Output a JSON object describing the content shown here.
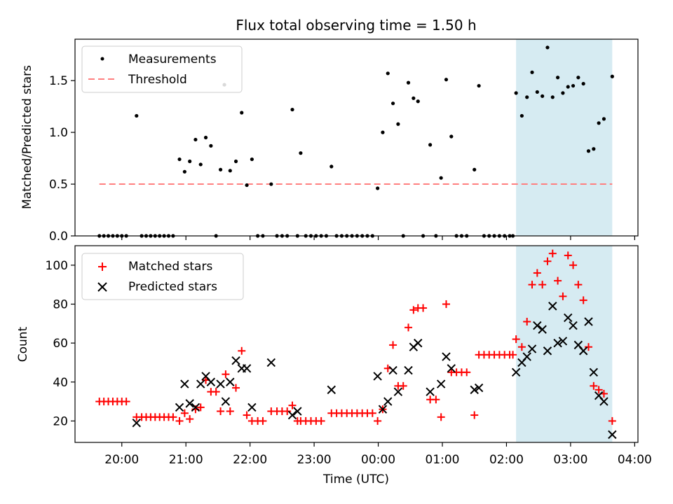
{
  "figure": {
    "title": "Flux total observing time = 1.50 h",
    "xlabel": "Time (UTC)",
    "xtick_labels": [
      "20:00",
      "21:00",
      "22:00",
      "23:00",
      "00:00",
      "01:00",
      "02:00",
      "03:00",
      "04:00"
    ],
    "colors": {
      "measurement": "#000000",
      "threshold": "#ff7f7f",
      "matched": "#ff0000",
      "predicted": "#000000",
      "span": "#add8e6"
    }
  },
  "chart_data": [
    {
      "type": "scatter",
      "x_unit": "hours since 19:00 UTC",
      "ylabel": "Matched/Predicted stars",
      "ylim": [
        0,
        1.9
      ],
      "yticks": [
        0.0,
        0.5,
        1.0,
        1.5
      ],
      "ytick_labels": [
        "0.0",
        "0.5",
        "1.0",
        "1.5"
      ],
      "legend": {
        "placement": "top-left",
        "entries": [
          "Measurements",
          "Threshold"
        ]
      },
      "threshold": {
        "name": "Threshold",
        "value": 0.5,
        "x": [
          0.65,
          8.65
        ]
      },
      "highlight_span": [
        7.15,
        8.65
      ],
      "series": [
        {
          "name": "Measurements",
          "points": [
            [
              0.65,
              0.0
            ],
            [
              0.72,
              0.0
            ],
            [
              0.79,
              0.0
            ],
            [
              0.86,
              0.0
            ],
            [
              0.93,
              0.0
            ],
            [
              1.0,
              0.0
            ],
            [
              1.07,
              0.0
            ],
            [
              1.23,
              1.16
            ],
            [
              1.31,
              0.0
            ],
            [
              1.38,
              0.0
            ],
            [
              1.45,
              0.0
            ],
            [
              1.52,
              0.0
            ],
            [
              1.59,
              0.0
            ],
            [
              1.66,
              0.0
            ],
            [
              1.73,
              0.0
            ],
            [
              1.8,
              0.0
            ],
            [
              1.9,
              0.74
            ],
            [
              1.98,
              0.62
            ],
            [
              2.06,
              0.72
            ],
            [
              2.15,
              0.93
            ],
            [
              2.23,
              0.69
            ],
            [
              2.31,
              0.95
            ],
            [
              2.39,
              0.87
            ],
            [
              2.47,
              0.0
            ],
            [
              2.54,
              0.64
            ],
            [
              2.6,
              1.46
            ],
            [
              2.69,
              0.63
            ],
            [
              2.78,
              0.72
            ],
            [
              2.87,
              1.19
            ],
            [
              2.95,
              0.49
            ],
            [
              3.03,
              0.74
            ],
            [
              3.12,
              0.0
            ],
            [
              3.2,
              0.0
            ],
            [
              3.33,
              0.5
            ],
            [
              3.42,
              0.0
            ],
            [
              3.5,
              0.0
            ],
            [
              3.58,
              0.0
            ],
            [
              3.66,
              1.22
            ],
            [
              3.74,
              0.0
            ],
            [
              3.79,
              0.8
            ],
            [
              3.87,
              0.0
            ],
            [
              3.95,
              0.0
            ],
            [
              4.03,
              0.0
            ],
            [
              4.11,
              0.0
            ],
            [
              4.19,
              0.0
            ],
            [
              4.27,
              0.67
            ],
            [
              4.35,
              0.0
            ],
            [
              4.43,
              0.0
            ],
            [
              4.51,
              0.0
            ],
            [
              4.59,
              0.0
            ],
            [
              4.67,
              0.0
            ],
            [
              4.75,
              0.0
            ],
            [
              4.83,
              0.0
            ],
            [
              4.91,
              0.0
            ],
            [
              4.99,
              0.46
            ],
            [
              5.07,
              1.0
            ],
            [
              5.15,
              1.57
            ],
            [
              5.23,
              1.28
            ],
            [
              5.31,
              1.08
            ],
            [
              5.39,
              0.0
            ],
            [
              5.47,
              1.48
            ],
            [
              5.55,
              1.33
            ],
            [
              5.62,
              1.3
            ],
            [
              5.7,
              0.0
            ],
            [
              5.81,
              0.88
            ],
            [
              5.9,
              0.0
            ],
            [
              5.98,
              0.56
            ],
            [
              6.06,
              1.51
            ],
            [
              6.14,
              0.96
            ],
            [
              6.22,
              0.0
            ],
            [
              6.3,
              0.0
            ],
            [
              6.38,
              0.0
            ],
            [
              6.5,
              0.64
            ],
            [
              6.57,
              1.45
            ],
            [
              6.65,
              0.0
            ],
            [
              6.73,
              0.0
            ],
            [
              6.81,
              0.0
            ],
            [
              6.89,
              0.0
            ],
            [
              6.97,
              0.0
            ],
            [
              7.05,
              0.0
            ],
            [
              7.1,
              0.0
            ],
            [
              7.15,
              1.38
            ],
            [
              7.24,
              1.16
            ],
            [
              7.32,
              1.34
            ],
            [
              7.4,
              1.58
            ],
            [
              7.48,
              1.39
            ],
            [
              7.56,
              1.35
            ],
            [
              7.64,
              1.82
            ],
            [
              7.72,
              1.34
            ],
            [
              7.8,
              1.53
            ],
            [
              7.88,
              1.38
            ],
            [
              7.96,
              1.44
            ],
            [
              8.04,
              1.45
            ],
            [
              8.12,
              1.53
            ],
            [
              8.2,
              1.47
            ],
            [
              8.28,
              0.82
            ],
            [
              8.36,
              0.84
            ],
            [
              8.44,
              1.09
            ],
            [
              8.52,
              1.13
            ],
            [
              8.65,
              1.54
            ]
          ]
        }
      ]
    },
    {
      "type": "scatter",
      "x_unit": "hours since 19:00 UTC",
      "ylabel": "Count",
      "ylim": [
        9,
        110
      ],
      "yticks": [
        20,
        40,
        60,
        80,
        100
      ],
      "ytick_labels": [
        "20",
        "40",
        "60",
        "80",
        "100"
      ],
      "legend": {
        "placement": "top-left",
        "entries": [
          "Matched stars",
          "Predicted stars"
        ]
      },
      "highlight_span": [
        7.15,
        8.65
      ],
      "series": [
        {
          "name": "Matched stars",
          "marker": "plus",
          "points": [
            [
              0.65,
              30
            ],
            [
              0.72,
              30
            ],
            [
              0.79,
              30
            ],
            [
              0.86,
              30
            ],
            [
              0.93,
              30
            ],
            [
              1.0,
              30
            ],
            [
              1.07,
              30
            ],
            [
              1.23,
              22
            ],
            [
              1.31,
              22
            ],
            [
              1.38,
              22
            ],
            [
              1.45,
              22
            ],
            [
              1.52,
              22
            ],
            [
              1.59,
              22
            ],
            [
              1.66,
              22
            ],
            [
              1.73,
              22
            ],
            [
              1.8,
              22
            ],
            [
              1.9,
              20
            ],
            [
              1.98,
              24
            ],
            [
              2.06,
              21
            ],
            [
              2.15,
              26
            ],
            [
              2.23,
              27
            ],
            [
              2.31,
              41
            ],
            [
              2.39,
              35
            ],
            [
              2.47,
              35
            ],
            [
              2.54,
              25
            ],
            [
              2.62,
              44
            ],
            [
              2.69,
              25
            ],
            [
              2.78,
              37
            ],
            [
              2.87,
              56
            ],
            [
              2.95,
              23
            ],
            [
              3.03,
              20
            ],
            [
              3.12,
              20
            ],
            [
              3.2,
              20
            ],
            [
              3.33,
              25
            ],
            [
              3.42,
              25
            ],
            [
              3.5,
              25
            ],
            [
              3.58,
              25
            ],
            [
              3.66,
              28
            ],
            [
              3.74,
              20
            ],
            [
              3.79,
              20
            ],
            [
              3.87,
              20
            ],
            [
              3.95,
              20
            ],
            [
              4.03,
              20
            ],
            [
              4.11,
              20
            ],
            [
              4.27,
              24
            ],
            [
              4.35,
              24
            ],
            [
              4.43,
              24
            ],
            [
              4.51,
              24
            ],
            [
              4.59,
              24
            ],
            [
              4.67,
              24
            ],
            [
              4.75,
              24
            ],
            [
              4.83,
              24
            ],
            [
              4.91,
              24
            ],
            [
              4.99,
              20
            ],
            [
              5.07,
              26
            ],
            [
              5.15,
              47
            ],
            [
              5.23,
              59
            ],
            [
              5.31,
              38
            ],
            [
              5.39,
              38
            ],
            [
              5.47,
              68
            ],
            [
              5.55,
              77
            ],
            [
              5.62,
              78
            ],
            [
              5.7,
              78
            ],
            [
              5.81,
              31
            ],
            [
              5.9,
              31
            ],
            [
              5.98,
              22
            ],
            [
              6.06,
              80
            ],
            [
              6.14,
              45
            ],
            [
              6.22,
              45
            ],
            [
              6.3,
              45
            ],
            [
              6.38,
              45
            ],
            [
              6.5,
              23
            ],
            [
              6.57,
              54
            ],
            [
              6.65,
              54
            ],
            [
              6.73,
              54
            ],
            [
              6.81,
              54
            ],
            [
              6.89,
              54
            ],
            [
              6.97,
              54
            ],
            [
              7.05,
              54
            ],
            [
              7.1,
              54
            ],
            [
              7.15,
              62
            ],
            [
              7.24,
              58
            ],
            [
              7.32,
              71
            ],
            [
              7.4,
              90
            ],
            [
              7.48,
              96
            ],
            [
              7.56,
              90
            ],
            [
              7.64,
              102
            ],
            [
              7.72,
              106
            ],
            [
              7.8,
              92
            ],
            [
              7.88,
              84
            ],
            [
              7.96,
              105
            ],
            [
              8.04,
              100
            ],
            [
              8.12,
              90
            ],
            [
              8.2,
              82
            ],
            [
              8.28,
              58
            ],
            [
              8.36,
              38
            ],
            [
              8.44,
              36
            ],
            [
              8.52,
              34
            ],
            [
              8.65,
              20
            ]
          ]
        },
        {
          "name": "Predicted stars",
          "marker": "x",
          "points": [
            [
              1.23,
              19
            ],
            [
              1.9,
              27
            ],
            [
              1.98,
              39
            ],
            [
              2.06,
              29
            ],
            [
              2.15,
              27
            ],
            [
              2.23,
              39
            ],
            [
              2.31,
              43
            ],
            [
              2.39,
              40
            ],
            [
              2.54,
              39
            ],
            [
              2.62,
              30
            ],
            [
              2.69,
              40
            ],
            [
              2.78,
              51
            ],
            [
              2.87,
              47
            ],
            [
              2.95,
              47
            ],
            [
              3.03,
              27
            ],
            [
              3.33,
              50
            ],
            [
              3.66,
              23
            ],
            [
              3.74,
              25
            ],
            [
              4.27,
              36
            ],
            [
              4.99,
              43
            ],
            [
              5.07,
              26
            ],
            [
              5.15,
              30
            ],
            [
              5.23,
              46
            ],
            [
              5.31,
              35
            ],
            [
              5.47,
              46
            ],
            [
              5.55,
              58
            ],
            [
              5.62,
              60
            ],
            [
              5.81,
              35
            ],
            [
              5.98,
              39
            ],
            [
              6.06,
              53
            ],
            [
              6.14,
              47
            ],
            [
              6.5,
              36
            ],
            [
              6.57,
              37
            ],
            [
              7.15,
              45
            ],
            [
              7.24,
              50
            ],
            [
              7.32,
              53
            ],
            [
              7.4,
              57
            ],
            [
              7.48,
              69
            ],
            [
              7.56,
              67
            ],
            [
              7.64,
              56
            ],
            [
              7.72,
              79
            ],
            [
              7.8,
              60
            ],
            [
              7.88,
              61
            ],
            [
              7.96,
              73
            ],
            [
              8.04,
              69
            ],
            [
              8.12,
              59
            ],
            [
              8.2,
              56
            ],
            [
              8.28,
              71
            ],
            [
              8.36,
              45
            ],
            [
              8.44,
              33
            ],
            [
              8.52,
              30
            ],
            [
              8.65,
              13
            ]
          ]
        }
      ]
    }
  ]
}
